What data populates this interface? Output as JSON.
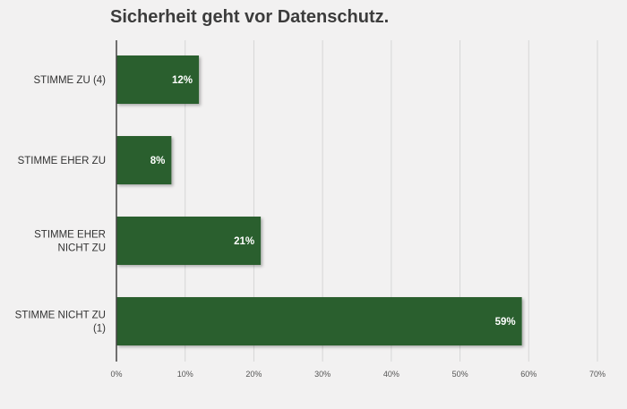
{
  "chart_data": {
    "type": "bar",
    "orientation": "horizontal",
    "title": "Sicherheit geht vor Datenschutz.",
    "categories": [
      [
        "STIMME ZU (4)"
      ],
      [
        "STIMME EHER ZU"
      ],
      [
        "STIMME EHER",
        "NICHT ZU"
      ],
      [
        "STIMME NICHT ZU",
        "(1)"
      ]
    ],
    "values": [
      12,
      8,
      21,
      59
    ],
    "value_labels": [
      "12%",
      "8%",
      "21%",
      "59%"
    ],
    "xlim": [
      0,
      70
    ],
    "xticks": [
      0,
      10,
      20,
      30,
      40,
      50,
      60,
      70
    ],
    "xtick_labels": [
      "0%",
      "10%",
      "20%",
      "30%",
      "40%",
      "50%",
      "60%",
      "70%"
    ],
    "grid": "vertical",
    "bar_color": "#2c5e2e",
    "xlabel": "",
    "ylabel": ""
  }
}
